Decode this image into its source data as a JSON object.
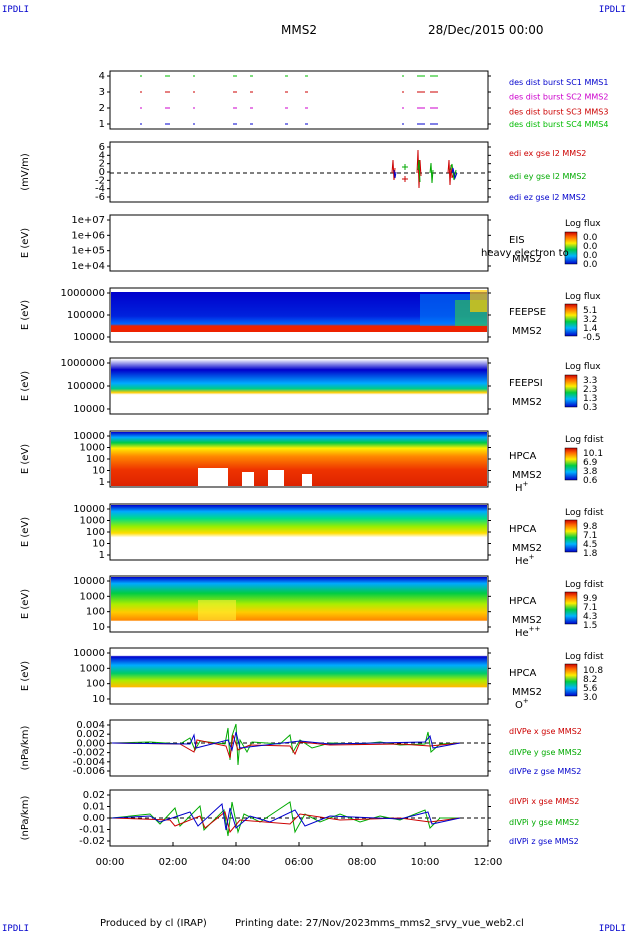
{
  "header": {
    "corner_label": "IPDLI",
    "spacecraft": "MMS2",
    "date": "28/Dec/2015 00:00"
  },
  "footer": {
    "produced": "Produced by cl (IRAP)",
    "printing": "Printing date: 27/Nov/2023",
    "file": "mms_mms2_srvy_vue_web2.cl"
  },
  "chart_data": {
    "type": "multi-panel time series",
    "x_ticks": [
      "00:00",
      "02:00",
      "04:00",
      "06:00",
      "08:00",
      "10:00",
      "12:00"
    ],
    "panels": [
      {
        "id": "burst",
        "yticks": [
          "4",
          "3",
          "2",
          "1"
        ],
        "legend": [
          {
            "text": "des dist burst SC1 MMS1",
            "color": "#0000cc"
          },
          {
            "text": "des dist burst SC2 MMS2",
            "color": "#cc00cc"
          },
          {
            "text": "des dist burst SC3 MMS3",
            "color": "#cc0000"
          },
          {
            "text": "des dist burst SC4 MMS4",
            "color": "#00bb00"
          }
        ]
      },
      {
        "id": "edi",
        "ylabel": "(mV/m)",
        "yticks": [
          "6",
          "4",
          "2",
          "0",
          "-2",
          "-4",
          "-6"
        ],
        "legend": [
          {
            "text": "edi ex gse l2 MMS2",
            "color": "#cc0000"
          },
          {
            "text": "edi ey gse l2 MMS2",
            "color": "#00aa00"
          },
          {
            "text": "edi ez gse l2 MMS2",
            "color": "#0000cc"
          }
        ]
      },
      {
        "id": "eis",
        "ylabel": "E (eV)",
        "yticks": [
          "1e+07",
          "1e+06",
          "1e+05",
          "1e+04"
        ],
        "labels": [
          "EIS",
          "MMS2"
        ],
        "overlay": "heavy electron to",
        "cbar_title": "Log flux",
        "cbar_ticks": [
          "0.0",
          "0.0",
          "0.0",
          "0.0"
        ]
      },
      {
        "id": "feepse",
        "ylabel": "E (eV)",
        "yticks": [
          "1000000",
          "100000",
          "10000"
        ],
        "labels": [
          "FEEPSE",
          "MMS2"
        ],
        "cbar_title": "Log flux",
        "cbar_ticks": [
          "5.1",
          "3.2",
          "1.4",
          "-0.5"
        ]
      },
      {
        "id": "feepsi",
        "ylabel": "E (eV)",
        "yticks": [
          "1000000",
          "100000",
          "10000"
        ],
        "labels": [
          "FEEPSI",
          "MMS2"
        ],
        "cbar_title": "Log flux",
        "cbar_ticks": [
          "3.3",
          "2.3",
          "1.3",
          "0.3"
        ]
      },
      {
        "id": "hpca_h",
        "ylabel": "E (eV)",
        "yticks": [
          "10000",
          "1000",
          "100",
          "10",
          "1"
        ],
        "labels": [
          "HPCA",
          "MMS2"
        ],
        "species": "H",
        "species_sup": "+",
        "cbar_title": "Log fdist",
        "cbar_ticks": [
          "10.1",
          "6.9",
          "3.8",
          "0.6"
        ]
      },
      {
        "id": "hpca_he",
        "ylabel": "E (eV)",
        "yticks": [
          "10000",
          "1000",
          "100",
          "10",
          "1"
        ],
        "labels": [
          "HPCA",
          "MMS2"
        ],
        "species": "He",
        "species_sup": "+",
        "cbar_title": "Log fdist",
        "cbar_ticks": [
          "9.8",
          "7.1",
          "4.5",
          "1.8"
        ]
      },
      {
        "id": "hpca_hepp",
        "ylabel": "E (eV)",
        "yticks": [
          "10000",
          "1000",
          "100",
          "10"
        ],
        "labels": [
          "HPCA",
          "MMS2"
        ],
        "species": "He",
        "species_sup": "++",
        "cbar_title": "Log fdist",
        "cbar_ticks": [
          "9.9",
          "7.1",
          "4.3",
          "1.5"
        ]
      },
      {
        "id": "hpca_o",
        "ylabel": "E (eV)",
        "yticks": [
          "10000",
          "1000",
          "100",
          "10"
        ],
        "labels": [
          "HPCA",
          "MMS2"
        ],
        "species": "O",
        "species_sup": "+",
        "cbar_title": "Log fdist",
        "cbar_ticks": [
          "10.8",
          "8.2",
          "5.6",
          "3.0"
        ]
      },
      {
        "id": "divpe",
        "ylabel": "(nPa/km)",
        "yticks": [
          "0.004",
          "0.002",
          "0.000",
          "-0.002",
          "-0.004",
          "-0.006"
        ],
        "legend": [
          {
            "text": "dIVPe x gse MMS2",
            "color": "#cc0000"
          },
          {
            "text": "dIVPe y gse MMS2",
            "color": "#00aa00"
          },
          {
            "text": "dIVPe z gse MMS2",
            "color": "#0000cc"
          }
        ]
      },
      {
        "id": "divpi",
        "ylabel": "(nPa/km)",
        "yticks": [
          "0.02",
          "0.01",
          "0.00",
          "-0.01",
          "-0.02"
        ],
        "legend": [
          {
            "text": "dIVPi x gse MMS2",
            "color": "#cc0000"
          },
          {
            "text": "dIVPi y gse MMS2",
            "color": "#00aa00"
          },
          {
            "text": "dIVPi z gse MMS2",
            "color": "#0000cc"
          }
        ]
      }
    ]
  }
}
